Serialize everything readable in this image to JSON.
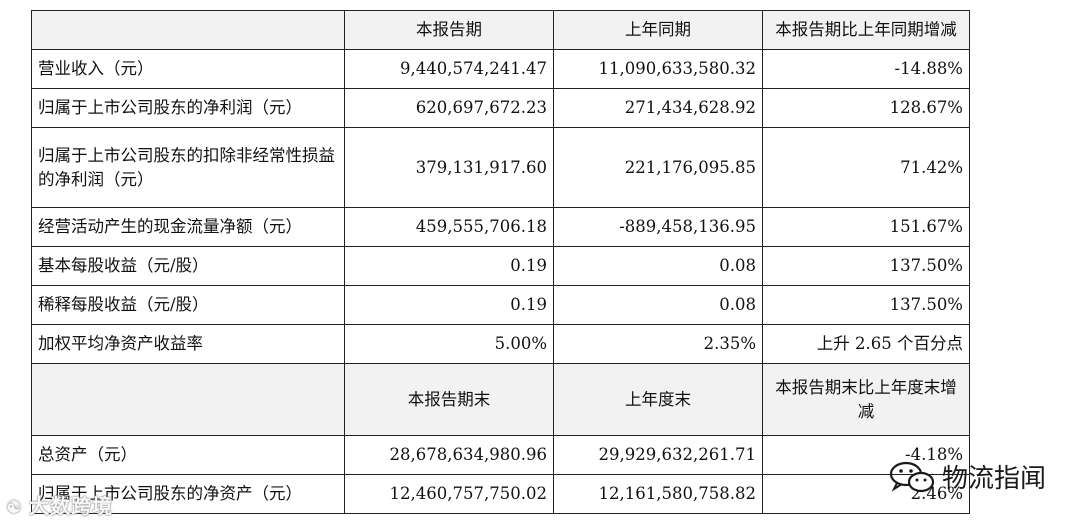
{
  "table": {
    "header1": {
      "col1": "本报告期",
      "col2": "上年同期",
      "col3": "本报告期比上年同期增减"
    },
    "rows1": [
      {
        "label": "营业收入（元）",
        "v1": "9,440,574,241.47",
        "v2": "11,090,633,580.32",
        "v3": "-14.88%"
      },
      {
        "label": "归属于上市公司股东的净利润（元）",
        "v1": "620,697,672.23",
        "v2": "271,434,628.92",
        "v3": "128.67%"
      },
      {
        "label": "归属于上市公司股东的扣除非经常性损益的净利润（元）",
        "v1": "379,131,917.60",
        "v2": "221,176,095.85",
        "v3": "71.42%"
      },
      {
        "label": "经营活动产生的现金流量净额（元）",
        "v1": "459,555,706.18",
        "v2": "-889,458,136.95",
        "v3": "151.67%"
      },
      {
        "label": "基本每股收益（元/股）",
        "v1": "0.19",
        "v2": "0.08",
        "v3": "137.50%"
      },
      {
        "label": "稀释每股收益（元/股）",
        "v1": "0.19",
        "v2": "0.08",
        "v3": "137.50%"
      },
      {
        "label": "加权平均净资产收益率",
        "v1": "5.00%",
        "v2": "2.35%",
        "v3": "上升 2.65 个百分点"
      }
    ],
    "header2": {
      "col1": "本报告期末",
      "col2": "上年度末",
      "col3": "本报告期末比上年度末增减"
    },
    "rows2": [
      {
        "label": "总资产（元）",
        "v1": "28,678,634,980.96",
        "v2": "29,929,632,261.71",
        "v3": "-4.18%"
      },
      {
        "label": "归属于上市公司股东的净资产（元）",
        "v1": "12,460,757,750.02",
        "v2": "12,161,580,758.82",
        "v3": "2.46%"
      }
    ]
  },
  "watermarks": {
    "left": "大数跨境",
    "right": "物流指闻"
  }
}
